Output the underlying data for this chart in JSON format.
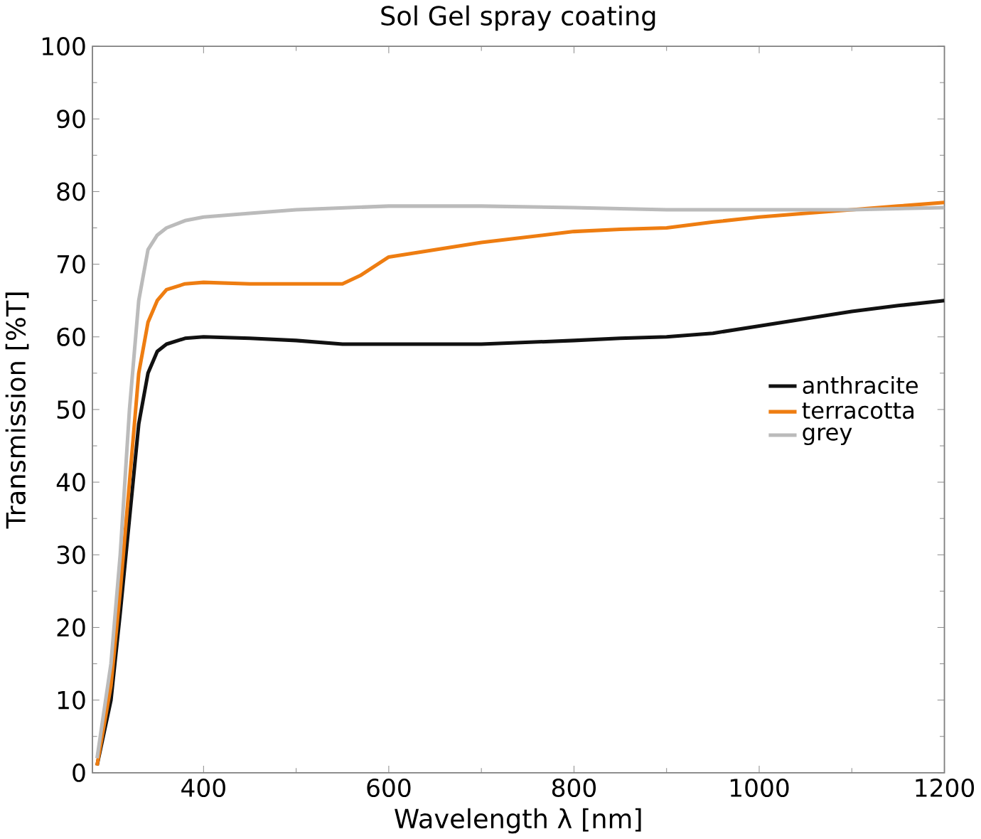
{
  "chart_data": {
    "type": "line",
    "title": "Sol Gel spray coating",
    "xlabel": "Wavelength λ [nm]",
    "ylabel": "Transmission [%T]",
    "xlim": [
      280,
      1200
    ],
    "ylim": [
      0,
      100
    ],
    "xticks": [
      400,
      600,
      800,
      1000,
      1200
    ],
    "yticks": [
      0,
      10,
      20,
      30,
      40,
      50,
      60,
      70,
      80,
      90,
      100
    ],
    "grid": false,
    "legend": "right",
    "marker": "none",
    "line_style": "solid",
    "series": [
      {
        "name": "anthracite",
        "color": "#111111",
        "x": [
          285,
          300,
          310,
          320,
          330,
          340,
          350,
          360,
          380,
          400,
          450,
          500,
          550,
          600,
          700,
          800,
          850,
          900,
          950,
          1000,
          1050,
          1100,
          1150,
          1200
        ],
        "values": [
          1,
          10,
          22,
          35,
          48,
          55,
          58,
          59,
          59.8,
          60,
          59.8,
          59.5,
          59,
          59,
          59,
          59.5,
          59.8,
          60,
          60.5,
          61.5,
          62.5,
          63.5,
          64.3,
          65
        ]
      },
      {
        "name": "terracotta",
        "color": "#ee7d11",
        "x": [
          285,
          300,
          310,
          320,
          330,
          340,
          350,
          360,
          380,
          400,
          450,
          500,
          550,
          570,
          600,
          650,
          700,
          800,
          850,
          900,
          950,
          1000,
          1050,
          1100,
          1150,
          1200
        ],
        "values": [
          1,
          12,
          25,
          40,
          55,
          62,
          65,
          66.5,
          67.3,
          67.5,
          67.3,
          67.3,
          67.3,
          68.5,
          71,
          72,
          73,
          74.5,
          74.8,
          75,
          75.8,
          76.5,
          77,
          77.5,
          78,
          78.5
        ]
      },
      {
        "name": "grey",
        "color": "#bbbbbb",
        "x": [
          285,
          300,
          310,
          320,
          330,
          340,
          350,
          360,
          380,
          400,
          450,
          500,
          600,
          700,
          800,
          900,
          1000,
          1100,
          1200
        ],
        "values": [
          2,
          15,
          30,
          50,
          65,
          72,
          74,
          75,
          76,
          76.5,
          77,
          77.5,
          78,
          78,
          77.8,
          77.5,
          77.5,
          77.5,
          77.8
        ]
      }
    ]
  }
}
